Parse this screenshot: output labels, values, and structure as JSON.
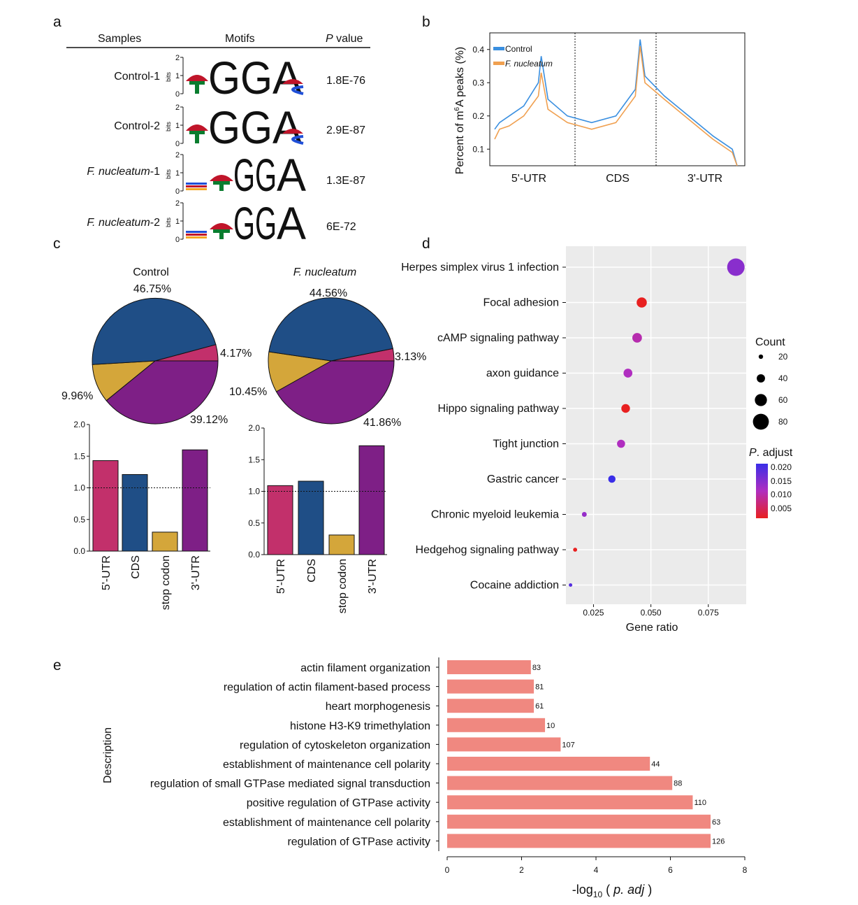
{
  "colors": {
    "blue": "#1f4e86",
    "purple": "#7e1f86",
    "pink": "#c2306b",
    "gold": "#d4a63a",
    "line_control": "#3a8fe0",
    "line_fn": "#f0a050",
    "bar_e": "#f08880",
    "motif_green": "#0a7d2f",
    "motif_orange": "#f5a623",
    "motif_red": "#c0152a",
    "motif_blue": "#1f4fd8"
  },
  "panel_a": {
    "letter": "a",
    "header": {
      "samples": "Samples",
      "motifs": "Motifs",
      "pvalue_p": "P",
      "pvalue_rest": " value"
    },
    "axis_bits": "bits",
    "axis_ticks": [
      "0",
      "1",
      "2"
    ],
    "rows": [
      {
        "sample": "Control-1",
        "italic": false,
        "pvalue": "1.8E-76"
      },
      {
        "sample": "Control-2",
        "italic": false,
        "pvalue": "2.9E-87"
      },
      {
        "sample_it": "F. nucleatum",
        "sample_rest": "-1",
        "italic": true,
        "pvalue": "1.3E-87"
      },
      {
        "sample_it": "F. nucleatum",
        "sample_rest": "-2",
        "italic": true,
        "pvalue": "6E-72"
      }
    ],
    "motif_letters": [
      "G",
      "G",
      "A"
    ]
  },
  "chart_data": [
    {
      "panel": "b",
      "type": "line",
      "ylabel": "Percent of m6A peaks (%)",
      "ylabel_parts": {
        "pre": "Percent of m",
        "sup": "6",
        "post": "A peaks (%)"
      },
      "y_ticks": [
        "0.1",
        "0.2",
        "0.3",
        "0.4"
      ],
      "ylim": [
        0.05,
        0.45
      ],
      "regions": [
        "5'-UTR",
        "CDS",
        "3'-UTR"
      ],
      "legend": [
        {
          "name": "Control",
          "italic": false
        },
        {
          "name": "F. nucleatum",
          "italic": true
        }
      ],
      "series": [
        {
          "name": "Control",
          "x": [
            0,
            0.05,
            0.15,
            0.3,
            0.45,
            0.48,
            0.55,
            0.75,
            1.0,
            1.25,
            1.45,
            1.5,
            1.55,
            1.75,
            2.0,
            2.25,
            2.45,
            2.5
          ],
          "y": [
            0.16,
            0.18,
            0.2,
            0.23,
            0.3,
            0.38,
            0.25,
            0.2,
            0.18,
            0.2,
            0.28,
            0.43,
            0.32,
            0.26,
            0.2,
            0.14,
            0.1,
            0.05
          ]
        },
        {
          "name": "F. nucleatum",
          "x": [
            0,
            0.05,
            0.15,
            0.3,
            0.45,
            0.48,
            0.55,
            0.75,
            1.0,
            1.25,
            1.45,
            1.5,
            1.55,
            1.75,
            2.0,
            2.25,
            2.45,
            2.5
          ],
          "y": [
            0.13,
            0.16,
            0.17,
            0.2,
            0.26,
            0.33,
            0.22,
            0.18,
            0.16,
            0.18,
            0.26,
            0.41,
            0.3,
            0.25,
            0.19,
            0.13,
            0.09,
            0.05
          ]
        }
      ]
    },
    {
      "panel": "c",
      "type": "pie",
      "title": "Control",
      "title_italic": false,
      "segments": [
        {
          "label": "5'-UTR",
          "value": 4.17,
          "text": "4.17%"
        },
        {
          "label": "3'-UTR",
          "value": 39.12,
          "text": "39.12%"
        },
        {
          "label": "stop codon",
          "value": 9.96,
          "text": "9.96%"
        },
        {
          "label": "CDS",
          "value": 46.75,
          "text": "46.75%"
        }
      ]
    },
    {
      "panel": "c",
      "type": "pie",
      "title": "F. nucleatum",
      "title_italic": true,
      "segments": [
        {
          "label": "5'-UTR",
          "value": 3.13,
          "text": "3.13%"
        },
        {
          "label": "3'-UTR",
          "value": 41.86,
          "text": "41.86%"
        },
        {
          "label": "stop codon",
          "value": 10.45,
          "text": "10.45%"
        },
        {
          "label": "CDS",
          "value": 44.56,
          "text": "44.56%"
        }
      ]
    },
    {
      "panel": "c",
      "type": "bar",
      "categories": [
        "5'-UTR",
        "CDS",
        "stop codon",
        "3'-UTR"
      ],
      "values": [
        1.43,
        1.21,
        0.3,
        1.6
      ],
      "y_ticks": [
        "0.0",
        "0.5",
        "1.0",
        "1.5",
        "2.0"
      ],
      "ylim": [
        0,
        2.0
      ],
      "reference_line": 1.0
    },
    {
      "panel": "c",
      "type": "bar",
      "categories": [
        "5'-UTR",
        "CDS",
        "stop codon",
        "3'-UTR"
      ],
      "values": [
        1.09,
        1.16,
        0.31,
        1.72
      ],
      "y_ticks": [
        "0.0",
        "0.5",
        "1.0",
        "1.5",
        "2.0"
      ],
      "ylim": [
        0,
        2.0
      ],
      "reference_line": 1.0
    },
    {
      "panel": "d",
      "type": "scatter",
      "xlabel": "Gene ratio",
      "x_ticks": [
        "0.025",
        "0.050",
        "0.075"
      ],
      "xlim": [
        0.013,
        0.0915
      ],
      "categories": [
        "Herpes simplex virus 1 infection",
        "Focal adhesion",
        "cAMP signaling pathway",
        "axon guidance",
        "Hippo signaling pathway",
        "Tight junction",
        "Gastric cancer",
        "Chronic myeloid leukemia",
        "Hedgehog signaling pathway",
        "Cocaine addiction"
      ],
      "points": [
        {
          "x": 0.087,
          "count": 88,
          "p_adjust": 0.014
        },
        {
          "x": 0.046,
          "count": 50,
          "p_adjust": 0.002
        },
        {
          "x": 0.044,
          "count": 47,
          "p_adjust": 0.01
        },
        {
          "x": 0.04,
          "count": 43,
          "p_adjust": 0.011
        },
        {
          "x": 0.039,
          "count": 42,
          "p_adjust": 0.002
        },
        {
          "x": 0.037,
          "count": 39,
          "p_adjust": 0.011
        },
        {
          "x": 0.033,
          "count": 35,
          "p_adjust": 0.02
        },
        {
          "x": 0.021,
          "count": 22,
          "p_adjust": 0.013
        },
        {
          "x": 0.017,
          "count": 18,
          "p_adjust": 0.002
        },
        {
          "x": 0.015,
          "count": 15,
          "p_adjust": 0.018
        }
      ],
      "legend_count": {
        "title": "Count",
        "labels": [
          "20",
          "40",
          "60",
          "80"
        ],
        "values": [
          20,
          40,
          60,
          80
        ]
      },
      "legend_color": {
        "title_it": "P",
        "title_rest": ". adjust",
        "labels": [
          "0.020",
          "0.015",
          "0.010",
          "0.005"
        ],
        "low_color": "#e82020",
        "high_color": "#3a2ee8"
      }
    },
    {
      "panel": "e",
      "type": "bar",
      "orientation": "horizontal",
      "ylabel": "Description",
      "xlabel": "-log10 ( p. adj )",
      "xlabel_parts": {
        "pre": "-log",
        "sub": "10",
        "mid": " ( ",
        "it": "p. adj",
        "post": " )"
      },
      "x_ticks": [
        "0",
        "2",
        "4",
        "6",
        "8"
      ],
      "xlim": [
        0,
        8
      ],
      "categories": [
        "actin filament organization",
        "regulation of actin filament-based process",
        "heart morphogenesis",
        "histone H3-K9 trimethylation",
        "regulation of cytoskeleton organization",
        "establishment of maintenance cell polarity",
        "regulation of small GTPase mediated signal transduction",
        "positive regulation of GTPase activity",
        "establishment of maintenance cell polarity",
        "regulation of GTPase activity"
      ],
      "values": [
        2.25,
        2.33,
        2.33,
        2.63,
        3.05,
        5.45,
        6.05,
        6.6,
        7.08,
        7.08
      ],
      "counts": [
        "83",
        "81",
        "61",
        "10",
        "107",
        "44",
        "88",
        "110",
        "63",
        "126"
      ]
    }
  ],
  "panel_letters": {
    "b": "b",
    "c": "c",
    "d": "d",
    "e": "e"
  }
}
